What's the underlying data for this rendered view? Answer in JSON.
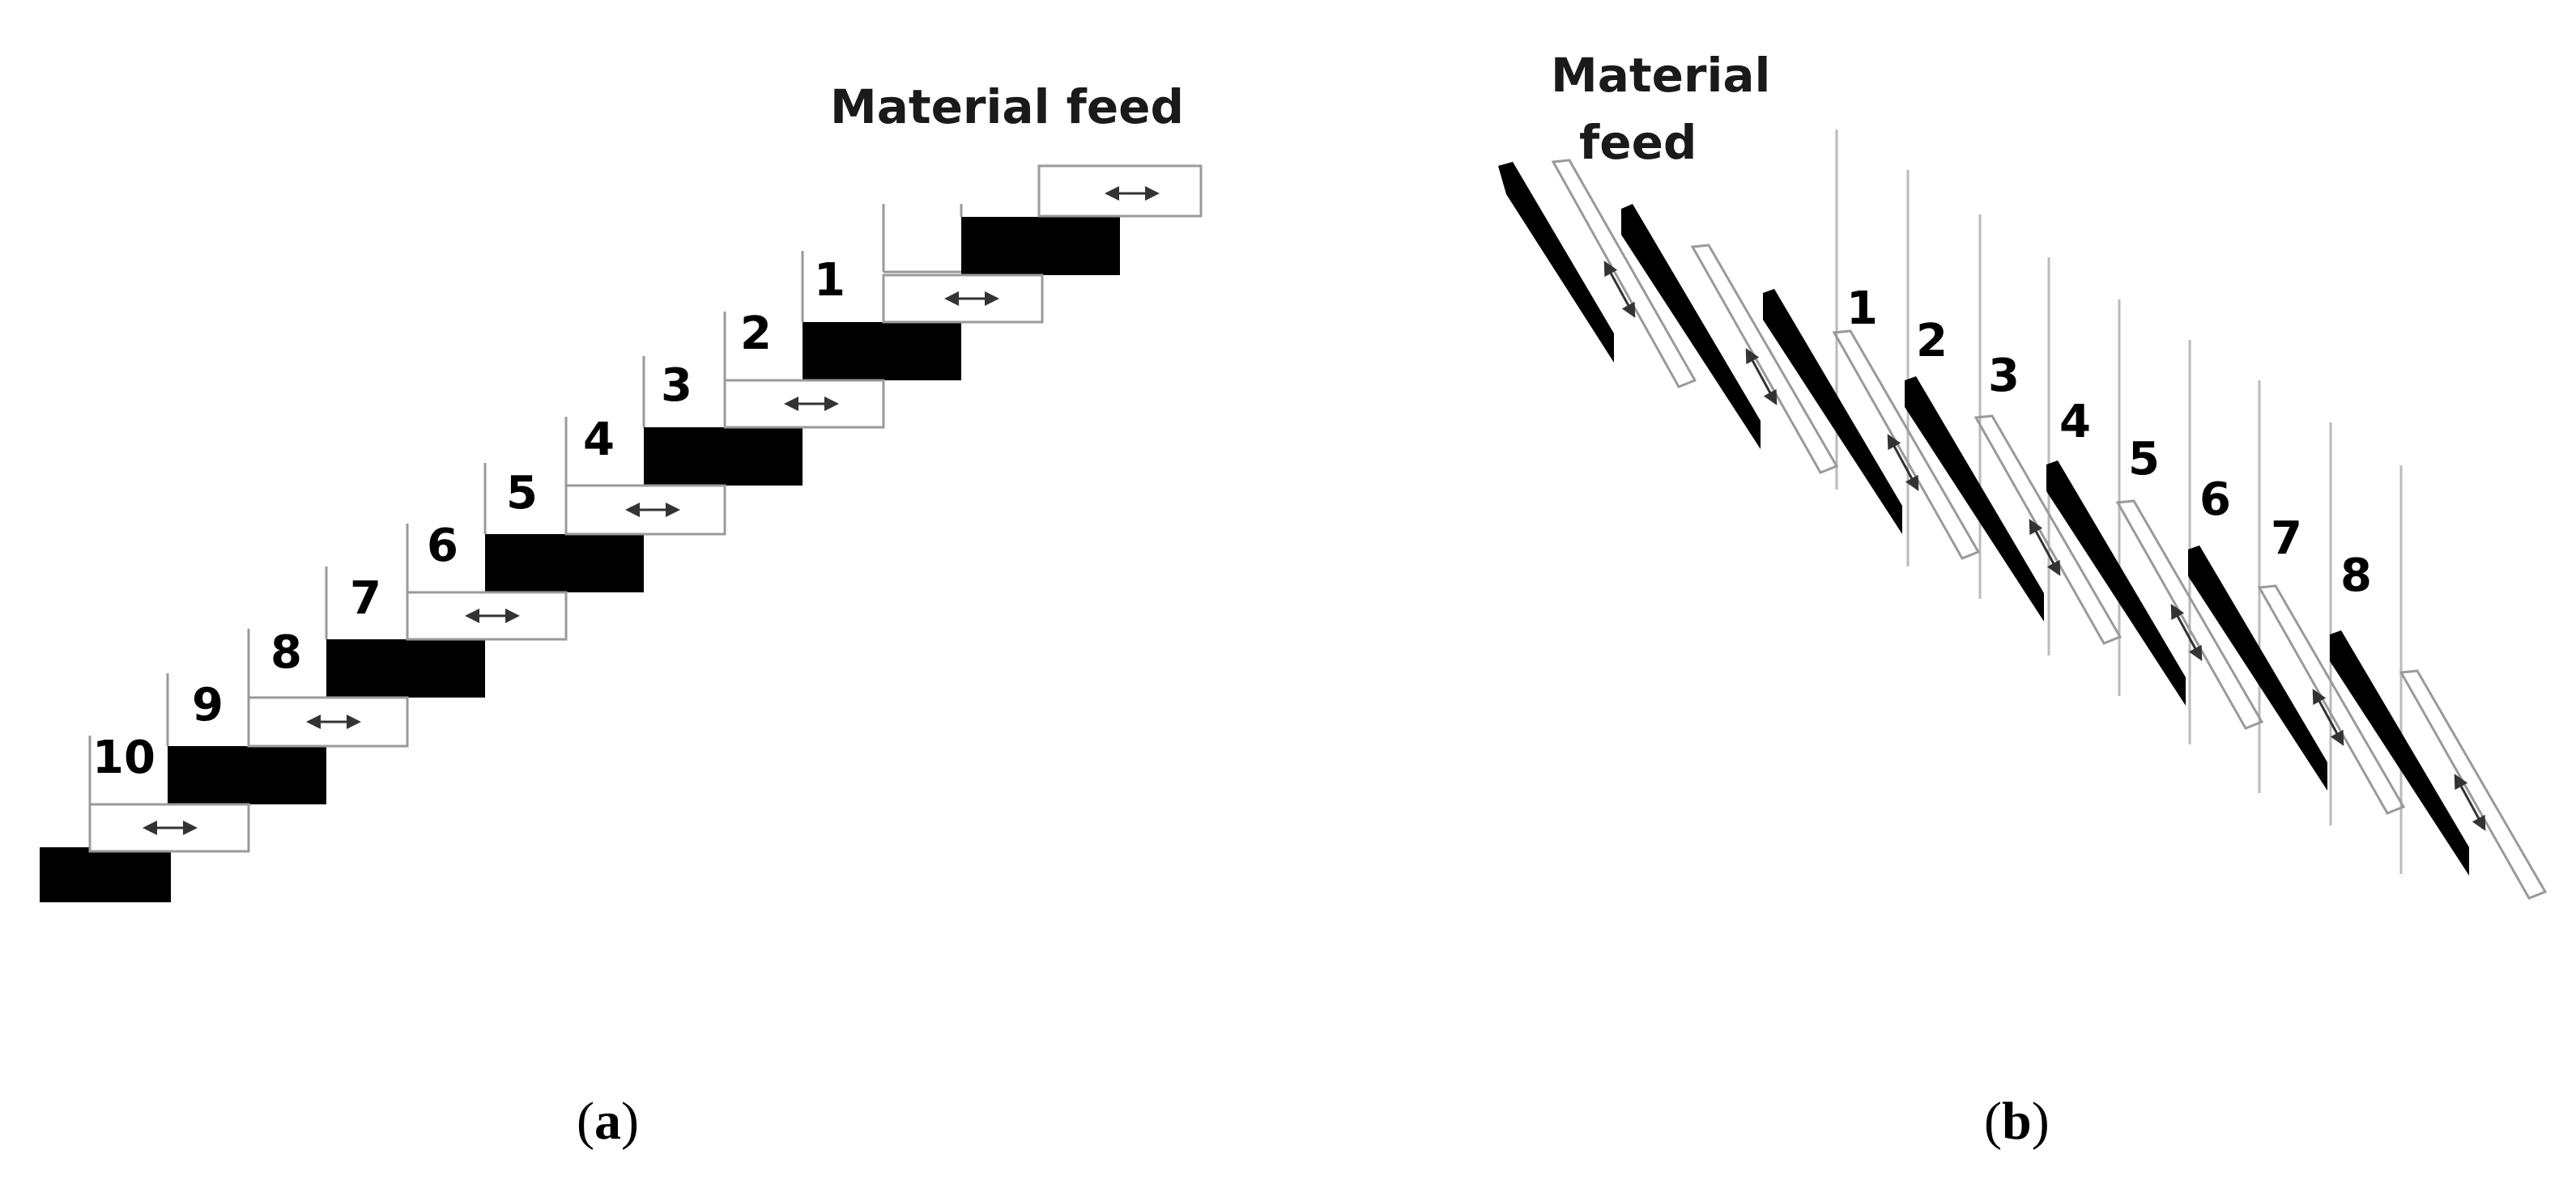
{
  "panel_a": {
    "feed_label": "Material feed",
    "stage_labels": [
      "1",
      "2",
      "3",
      "4",
      "5",
      "6",
      "7",
      "8",
      "9",
      "10"
    ],
    "caption_letter": "a"
  },
  "panel_b": {
    "feed_label_line1": "Material",
    "feed_label_line2": "feed",
    "stage_labels": [
      "1",
      "2",
      "3",
      "4",
      "5",
      "6",
      "7",
      "8"
    ],
    "caption_letter": "b"
  },
  "colors": {
    "grating": "#000000",
    "outline": "#9a9a9a",
    "background": "#ffffff"
  }
}
